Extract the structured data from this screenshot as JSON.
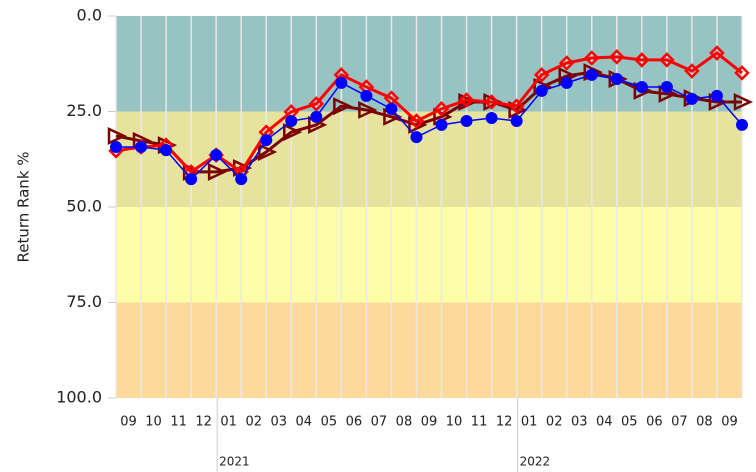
{
  "chart_data": {
    "type": "line",
    "y_label": "Return Rank %",
    "categories": [
      null,
      "09",
      "10",
      "11",
      "12",
      "01",
      "02",
      "03",
      "04",
      "05",
      "06",
      "07",
      "08",
      "09",
      "10",
      "11",
      "12",
      "01",
      "02",
      "03",
      "04",
      "05",
      "06",
      "07",
      "08",
      "09"
    ],
    "year_markers": [
      {
        "index": 5,
        "label": "2021"
      },
      {
        "index": 17,
        "label": "2022"
      }
    ],
    "ylim": [
      0,
      100
    ],
    "y_inverted": true,
    "yticks": [
      {
        "value": 0,
        "label": "0.0"
      },
      {
        "value": 25,
        "label": "25.0"
      },
      {
        "value": 50,
        "label": "50.0"
      },
      {
        "value": 75,
        "label": "75.0"
      },
      {
        "value": 100,
        "label": "100.0"
      }
    ],
    "bands": [
      {
        "from": 0,
        "to": 25,
        "color": "#98c3c3"
      },
      {
        "from": 25,
        "to": 50,
        "color": "#e6e39e"
      },
      {
        "from": 50,
        "to": 75,
        "color": "#fefea9"
      },
      {
        "from": 75,
        "to": 100,
        "color": "#fdd99b"
      }
    ],
    "grid": true,
    "series": [
      {
        "color": "#7b0000",
        "marker": "triangle",
        "values": [
          31.4,
          32.7,
          33.8,
          40.8,
          40.8,
          39.8,
          35.6,
          30.4,
          28.5,
          23.6,
          24.6,
          26.4,
          28.5,
          26.4,
          22.5,
          22.5,
          24.6,
          18.6,
          15.7,
          14.7,
          16.5,
          19.6,
          20.4,
          21.5,
          22.5,
          22.5
        ]
      },
      {
        "color": "#ff0000",
        "marker": "diamond",
        "values": [
          35.3,
          34.3,
          33.8,
          40.8,
          36.4,
          40.8,
          30.4,
          25.1,
          23.0,
          15.4,
          18.6,
          21.5,
          27.5,
          24.3,
          22.0,
          22.5,
          23.6,
          15.4,
          12.3,
          11.0,
          10.7,
          11.5,
          11.5,
          14.4,
          9.7,
          14.9
        ]
      },
      {
        "color": "#0000ff",
        "marker": "circle",
        "values": [
          34.3,
          34.3,
          35.1,
          42.7,
          36.4,
          42.7,
          32.5,
          27.5,
          26.4,
          17.5,
          20.9,
          24.3,
          31.7,
          28.5,
          27.5,
          26.7,
          27.5,
          19.6,
          17.5,
          15.4,
          16.5,
          18.6,
          18.6,
          21.7,
          20.9,
          28.5
        ]
      }
    ]
  }
}
